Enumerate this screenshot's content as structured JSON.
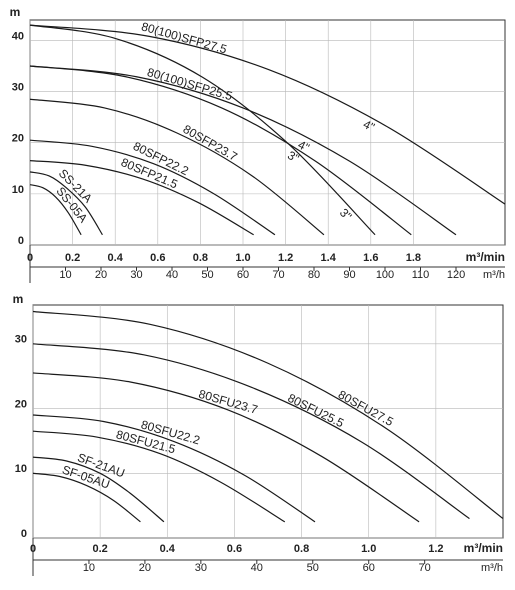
{
  "chart_data": [
    {
      "type": "line",
      "ylabel": "m",
      "xlabel": "m³/min",
      "x2label": "m³/h",
      "xlim": [
        0,
        2.23
      ],
      "ylim": [
        0,
        44
      ],
      "yticks": [
        0,
        10,
        20,
        30,
        40
      ],
      "xticks": [
        0,
        0.2,
        0.4,
        0.6,
        0.8,
        {
          "value": 1,
          "label": "1.0"
        },
        1.2,
        1.4,
        1.6,
        1.8
      ],
      "x2lim": [
        0,
        133.8
      ],
      "x2ticks": [
        10,
        20,
        30,
        40,
        50,
        60,
        70,
        80,
        90,
        100,
        110,
        120
      ],
      "grid": true,
      "color": "#1a1a1a",
      "label_color": "#2a9fd8",
      "series": [
        {
          "name": "80(100)SFP27.5",
          "variants": [
            {
              "name": "4\"",
              "x": [
                0,
                0.56,
                1.12,
                1.67,
                2.23
              ],
              "values": [
                43,
                40.8,
                34.3,
                23.3,
                8
              ]
            },
            {
              "name": "3\"",
              "x": [
                0,
                0.4,
                0.81,
                1.21,
                1.62
              ],
              "values": [
                43,
                40.4,
                32.8,
                19.9,
                2
              ]
            }
          ]
        },
        {
          "name": "80(100)SFP25.5",
          "variants": [
            {
              "name": "4\"",
              "x": [
                0,
                0.5,
                1,
                1.5,
                2
              ],
              "values": [
                35,
                32.9,
                26.8,
                16.4,
                2
              ]
            },
            {
              "name": "3\"",
              "x": [
                0,
                0.45,
                0.9,
                1.34,
                1.79
              ],
              "values": [
                35,
                32.9,
                26.8,
                16.4,
                2
              ]
            }
          ]
        },
        {
          "name": "80SFP23.7",
          "x": [
            0,
            0.35,
            0.69,
            1.04,
            1.38
          ],
          "values": [
            28.5,
            26.8,
            21.9,
            13.6,
            2
          ]
        },
        {
          "name": "80SFP22.2",
          "x": [
            0,
            0.29,
            0.58,
            0.86,
            1.15
          ],
          "values": [
            20.5,
            19.3,
            15.9,
            10.1,
            2
          ]
        },
        {
          "name": "80SFP21.5",
          "x": [
            0,
            0.26,
            0.53,
            0.79,
            1.05
          ],
          "values": [
            16.5,
            15.6,
            12.9,
            8.3,
            2
          ]
        },
        {
          "name": "SS-21A",
          "x": [
            0,
            0.09,
            0.17,
            0.26,
            0.34
          ],
          "values": [
            14.3,
            13.5,
            11.2,
            7.4,
            2
          ]
        },
        {
          "name": "SS-05A",
          "x": [
            0,
            0.06,
            0.12,
            0.18,
            0.24
          ],
          "values": [
            11.8,
            11.2,
            9.4,
            6.3,
            2
          ]
        }
      ]
    },
    {
      "type": "line",
      "ylabel": "m",
      "xlabel": "m³/min",
      "x2label": "m³/h",
      "xlim": [
        0,
        1.4
      ],
      "ylim": [
        0,
        36
      ],
      "yticks": [
        0,
        10,
        20,
        30
      ],
      "xticks": [
        0,
        0.2,
        0.4,
        0.6,
        0.8,
        {
          "value": 1,
          "label": "1.0"
        },
        1.2
      ],
      "x2lim": [
        0,
        84
      ],
      "x2ticks": [
        10,
        20,
        30,
        40,
        50,
        60,
        70
      ],
      "grid": true,
      "color": "#1a1a1a",
      "label_color": "#2a9fd8",
      "series": [
        {
          "name": "80SFU27.5",
          "x": [
            0,
            0.35,
            0.7,
            1.05,
            1.4
          ],
          "values": [
            35,
            33,
            27,
            17,
            3
          ]
        },
        {
          "name": "80SFU25.5",
          "x": [
            0,
            0.33,
            0.65,
            0.98,
            1.3
          ],
          "values": [
            30,
            28.3,
            23.3,
            14.8,
            3
          ]
        },
        {
          "name": "80SFU23.7",
          "x": [
            0,
            0.29,
            0.58,
            0.86,
            1.15
          ],
          "values": [
            25.5,
            24.1,
            19.8,
            12.6,
            2.5
          ]
        },
        {
          "name": "80SFU22.2",
          "x": [
            0,
            0.21,
            0.42,
            0.63,
            0.84
          ],
          "values": [
            19,
            18,
            14.9,
            9.7,
            2.5
          ]
        },
        {
          "name": "80SFU21.5",
          "x": [
            0,
            0.19,
            0.38,
            0.56,
            0.75
          ],
          "values": [
            16.5,
            15.6,
            13,
            8.6,
            2.5
          ]
        },
        {
          "name": "SF-21AU",
          "x": [
            0,
            0.1,
            0.2,
            0.29,
            0.39
          ],
          "values": [
            12.5,
            11.9,
            10,
            6.9,
            2.5
          ]
        },
        {
          "name": "SF-05AU",
          "x": [
            0,
            0.08,
            0.16,
            0.24,
            0.32
          ],
          "values": [
            10,
            9.5,
            8.1,
            5.8,
            2.5
          ]
        }
      ]
    }
  ]
}
